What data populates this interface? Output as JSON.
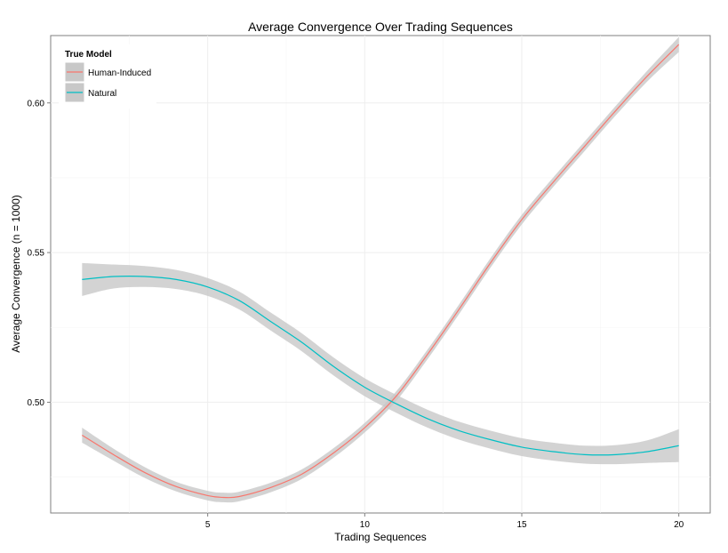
{
  "chart_data": {
    "type": "line",
    "title": "Average Convergence Over Trading Sequences",
    "xlabel": "Trading Sequences",
    "ylabel": "Average Convergence (n = 1000)",
    "xlim": [
      0,
      21
    ],
    "ylim": [
      0.463,
      0.6225
    ],
    "xticks": [
      5,
      10,
      15,
      20
    ],
    "yticks": [
      0.5,
      0.55,
      0.6
    ],
    "xtick_labels": [
      "5",
      "10",
      "15",
      "20"
    ],
    "ytick_labels": [
      "0.50",
      "0.55",
      "0.60"
    ],
    "grid": true,
    "legend": {
      "title": "True Model",
      "position": "top-left"
    },
    "series": [
      {
        "name": "Human-Induced",
        "color": "#f8766d",
        "x": [
          1,
          2,
          3,
          4,
          5,
          5.5,
          6,
          7,
          8,
          9,
          10,
          11,
          12,
          13,
          14,
          15,
          16,
          17,
          18,
          19,
          20
        ],
        "y": [
          0.489,
          0.4825,
          0.4765,
          0.4718,
          0.4688,
          0.4682,
          0.4685,
          0.4715,
          0.476,
          0.483,
          0.4915,
          0.502,
          0.516,
          0.531,
          0.5465,
          0.561,
          0.5735,
          0.5855,
          0.5975,
          0.609,
          0.6195
        ],
        "ci": [
          0.0025,
          0.002,
          0.0018,
          0.0016,
          0.0016,
          0.0016,
          0.0016,
          0.0016,
          0.0016,
          0.0016,
          0.0016,
          0.0016,
          0.0016,
          0.0016,
          0.0016,
          0.0016,
          0.0016,
          0.0016,
          0.0016,
          0.0018,
          0.0025
        ]
      },
      {
        "name": "Natural",
        "color": "#00bfc4",
        "x": [
          1,
          2,
          3,
          4,
          5,
          6,
          7,
          8,
          9,
          10,
          11,
          12,
          13,
          14,
          15,
          16,
          17,
          18,
          19,
          20
        ],
        "y": [
          0.541,
          0.542,
          0.542,
          0.541,
          0.5385,
          0.534,
          0.527,
          0.52,
          0.512,
          0.505,
          0.4995,
          0.4945,
          0.4905,
          0.4875,
          0.485,
          0.4835,
          0.4825,
          0.4825,
          0.4835,
          0.4855
        ],
        "ci": [
          0.0055,
          0.004,
          0.0035,
          0.0032,
          0.003,
          0.003,
          0.003,
          0.003,
          0.003,
          0.003,
          0.003,
          0.003,
          0.003,
          0.003,
          0.003,
          0.003,
          0.003,
          0.0032,
          0.0038,
          0.0055
        ]
      }
    ]
  }
}
